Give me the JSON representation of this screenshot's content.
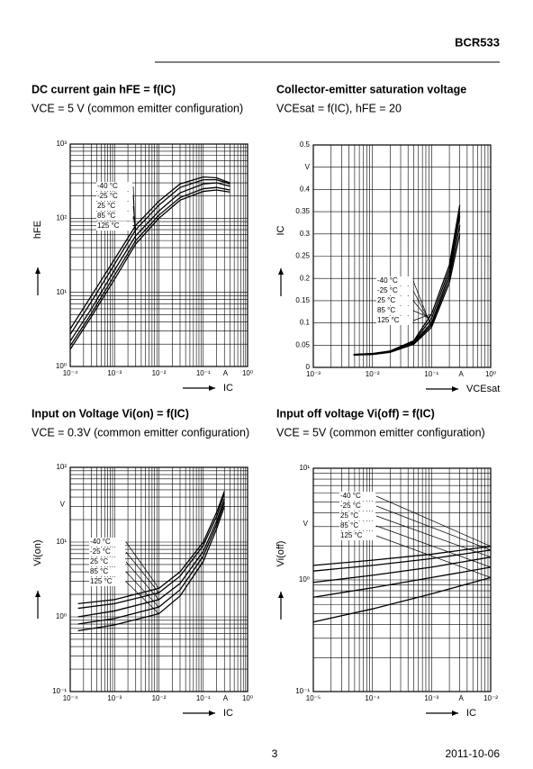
{
  "header": {
    "part": "BCR533"
  },
  "footer": {
    "page": "3",
    "date": "2011-10-06"
  },
  "chart_data": [
    {
      "type": "line",
      "title": "DC current gain hFE = f(IC)",
      "subtitle": "VCE = 5 V (common emitter configuration)",
      "x_label": "IC",
      "y_label": "hFE",
      "x_unit": "A",
      "xscale": "log",
      "yscale": "log",
      "xlim": [
        0.0001,
        1
      ],
      "ylim": [
        1,
        1000
      ],
      "xticks": [
        {
          "value": 0.0001,
          "label": "10⁻⁴"
        },
        {
          "value": 0.001,
          "label": "10⁻³"
        },
        {
          "value": 0.01,
          "label": "10⁻²"
        },
        {
          "value": 0.1,
          "label": "10⁻¹"
        },
        {
          "value": 1,
          "label": "10⁰"
        }
      ],
      "yticks": [
        {
          "value": 1,
          "label": "10⁰"
        },
        {
          "value": 10,
          "label": "10¹"
        },
        {
          "value": 100,
          "label": "10²"
        },
        {
          "value": 1000,
          "label": "10³"
        }
      ],
      "grid": true,
      "minor_grid": true,
      "x": [
        0.0001,
        0.0003,
        0.001,
        0.003,
        0.01,
        0.03,
        0.1,
        0.2,
        0.4
      ],
      "series": [
        {
          "name": "-40 °C",
          "color": "#000000",
          "values": [
            1.7,
            4.7,
            15,
            45,
            100,
            175,
            230,
            240,
            225
          ]
        },
        {
          "name": "-25 °C",
          "color": "#000000",
          "values": [
            1.9,
            5.2,
            17,
            50,
            110,
            190,
            250,
            260,
            240
          ]
        },
        {
          "name": "25 °C",
          "color": "#000000",
          "values": [
            2.2,
            6,
            20,
            58,
            125,
            220,
            290,
            300,
            270
          ]
        },
        {
          "name": "85 °C",
          "color": "#000000",
          "values": [
            2.7,
            7.5,
            24,
            70,
            150,
            260,
            330,
            330,
            290
          ]
        },
        {
          "name": "125 °C",
          "color": "#000000",
          "values": [
            3.2,
            9,
            28,
            80,
            170,
            290,
            360,
            350,
            300
          ]
        }
      ]
    },
    {
      "type": "line",
      "title": "Collector-emitter saturation voltage",
      "subtitle": "VCEsat = f(IC), hFE = 20",
      "x_label": "VCEsat",
      "y_label": "IC",
      "x_unit": "A",
      "xscale": "log",
      "yscale": "linear",
      "xlim": [
        0.001,
        1
      ],
      "ylim": [
        0,
        0.5
      ],
      "xticks": [
        {
          "value": 0.001,
          "label": "10⁻³"
        },
        {
          "value": 0.01,
          "label": "10⁻²"
        },
        {
          "value": 0.1,
          "label": "10⁻¹"
        },
        {
          "value": 1,
          "label": "10⁰"
        }
      ],
      "yticks": [
        0,
        0.05,
        0.1,
        0.15,
        0.2,
        0.25,
        0.3,
        0.35,
        0.4,
        {
          "value": 0.45,
          "label": "V"
        },
        0.5
      ],
      "grid": true,
      "minor_grid": true,
      "x": [
        0.0048,
        0.01,
        0.02,
        0.05,
        0.1,
        0.2,
        0.3
      ],
      "series": [
        {
          "name": "-40 °C",
          "color": "#000000",
          "values": [
            0.028,
            0.029,
            0.034,
            0.052,
            0.09,
            0.19,
            0.3
          ]
        },
        {
          "name": "-25 °C",
          "color": "#000000",
          "values": [
            0.028,
            0.03,
            0.035,
            0.054,
            0.095,
            0.2,
            0.32
          ]
        },
        {
          "name": "25 °C",
          "color": "#000000",
          "values": [
            0.028,
            0.03,
            0.035,
            0.056,
            0.1,
            0.21,
            0.34
          ]
        },
        {
          "name": "85 °C",
          "color": "#000000",
          "values": [
            0.029,
            0.031,
            0.036,
            0.058,
            0.11,
            0.22,
            0.35
          ]
        },
        {
          "name": "125 °C",
          "color": "#000000",
          "values": [
            0.029,
            0.031,
            0.037,
            0.06,
            0.12,
            0.23,
            0.365
          ]
        }
      ]
    },
    {
      "type": "line",
      "title": "Input on Voltage Vi(on) = f(IC)",
      "subtitle": "VCE = 0.3V (common emitter configuration)",
      "x_label": "IC",
      "y_label": "Vi(on)",
      "x_unit": "A",
      "y_unit": "V",
      "xscale": "log",
      "yscale": "log",
      "xlim": [
        0.0001,
        1
      ],
      "ylim": [
        0.1,
        100
      ],
      "xticks": [
        {
          "value": 0.0001,
          "label": "10⁻⁴"
        },
        {
          "value": 0.001,
          "label": "10⁻³"
        },
        {
          "value": 0.01,
          "label": "10⁻²"
        },
        {
          "value": 0.1,
          "label": "10⁻¹"
        },
        {
          "value": 1,
          "label": "10⁰"
        }
      ],
      "yticks": [
        {
          "value": 0.1,
          "label": "10⁻¹"
        },
        {
          "value": 1,
          "label": "10⁰"
        },
        {
          "value": 10,
          "label": "10¹"
        },
        {
          "value": 100,
          "label": "10²"
        }
      ],
      "grid": true,
      "minor_grid": true,
      "x": [
        0.00015,
        0.001,
        0.01,
        0.03,
        0.1,
        0.2,
        0.3
      ],
      "series": [
        {
          "name": "-40 °C",
          "color": "#000000",
          "values": [
            1.5,
            1.7,
            2.4,
            4,
            10,
            25,
            48
          ]
        },
        {
          "name": "-25 °C",
          "color": "#000000",
          "values": [
            1.3,
            1.5,
            2.1,
            3.5,
            9,
            22,
            44
          ]
        },
        {
          "name": "25 °C",
          "color": "#000000",
          "values": [
            1,
            1.2,
            1.7,
            2.8,
            7.5,
            19,
            38
          ]
        },
        {
          "name": "85 °C",
          "color": "#000000",
          "values": [
            0.8,
            0.95,
            1.35,
            2.3,
            6.5,
            17,
            34
          ]
        },
        {
          "name": "125 °C",
          "color": "#000000",
          "values": [
            0.65,
            0.78,
            1.1,
            1.9,
            5.5,
            15,
            30
          ]
        }
      ]
    },
    {
      "type": "line",
      "title": "Input off voltage Vi(off) = f(IC)",
      "subtitle": "VCE = 5V (common emitter configuration)",
      "x_label": "IC",
      "y_label": "Vi(off)",
      "x_unit": "A",
      "y_unit": "V",
      "xscale": "log",
      "yscale": "log",
      "xlim": [
        1e-05,
        0.01
      ],
      "ylim": [
        0.1,
        10
      ],
      "xticks": [
        {
          "value": 1e-05,
          "label": "10⁻⁵"
        },
        {
          "value": 0.0001,
          "label": "10⁻⁴"
        },
        {
          "value": 0.001,
          "label": "10⁻³"
        },
        {
          "value": 0.01,
          "label": "10⁻²"
        }
      ],
      "yticks": [
        {
          "value": 0.1,
          "label": "10⁻¹"
        },
        {
          "value": 1,
          "label": "10⁰"
        },
        {
          "value": 10,
          "label": "10¹"
        }
      ],
      "grid": true,
      "minor_grid": true,
      "x": [
        1e-05,
        0.0001,
        0.001,
        0.01
      ],
      "series": [
        {
          "name": "-40 °C",
          "color": "#000000",
          "values": [
            1.35,
            1.5,
            1.7,
            2
          ]
        },
        {
          "name": "-25 °C",
          "color": "#000000",
          "values": [
            1.2,
            1.35,
            1.55,
            1.85
          ]
        },
        {
          "name": "25 °C",
          "color": "#000000",
          "values": [
            0.95,
            1.1,
            1.3,
            1.6
          ]
        },
        {
          "name": "85 °C",
          "color": "#000000",
          "values": [
            0.7,
            0.85,
            1.05,
            1.3
          ]
        },
        {
          "name": "125 °C",
          "color": "#000000",
          "values": [
            0.42,
            0.55,
            0.75,
            1.05
          ]
        }
      ]
    }
  ]
}
